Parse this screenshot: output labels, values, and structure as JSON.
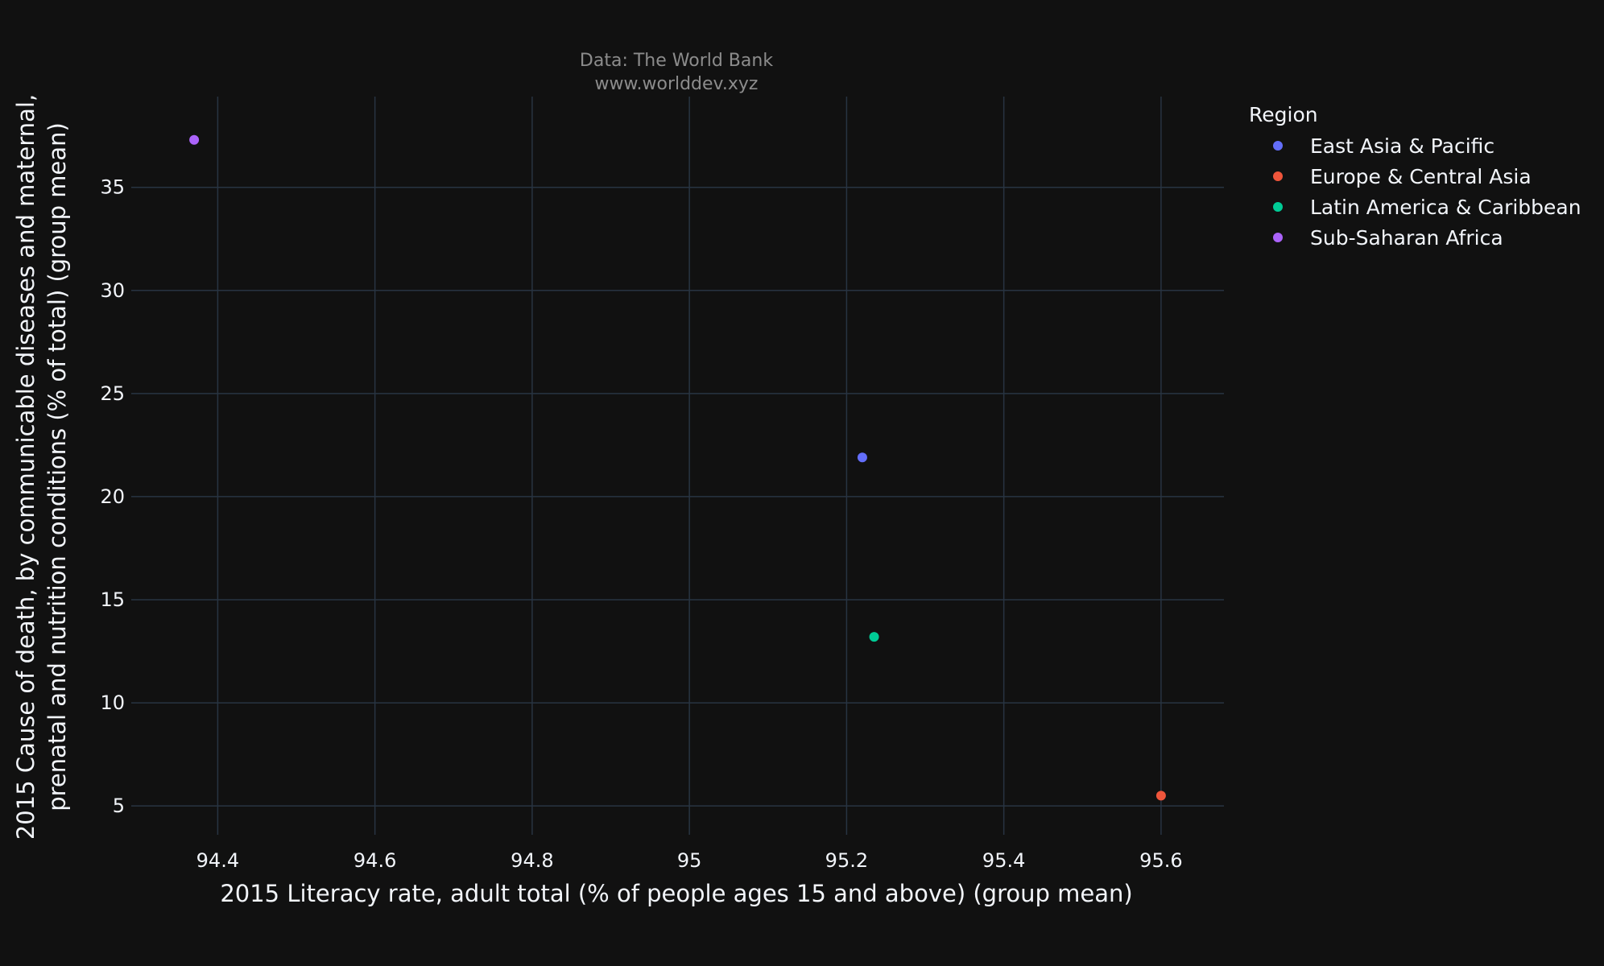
{
  "chart_data": {
    "type": "scatter",
    "subtitle_lines": [
      "Data: The World Bank",
      "www.worlddev.xyz"
    ],
    "xlabel": "2015 Literacy rate, adult total (% of people ages 15 and above) (group mean)",
    "ylabel_lines": [
      "2015 Cause of death, by communicable diseases and maternal,",
      "prenatal and nutrition conditions (% of total) (group mean)"
    ],
    "xlim": [
      94.29,
      95.68
    ],
    "ylim": [
      3.6,
      39.4
    ],
    "x_ticks": [
      94.4,
      94.6,
      94.8,
      95,
      95.2,
      95.4,
      95.6
    ],
    "x_tick_labels": [
      "94.4",
      "94.6",
      "94.8",
      "95",
      "95.2",
      "95.4",
      "95.6"
    ],
    "y_ticks": [
      5,
      10,
      15,
      20,
      25,
      30,
      35
    ],
    "y_tick_labels": [
      "5",
      "10",
      "15",
      "20",
      "25",
      "30",
      "35"
    ],
    "grid": true,
    "legend_title": "Region",
    "legend_position": "right",
    "series": [
      {
        "name": "East Asia & Pacific",
        "color": "#636efa",
        "x": [
          95.22
        ],
        "y": [
          21.9
        ]
      },
      {
        "name": "Europe & Central Asia",
        "color": "#ef553b",
        "x": [
          95.6
        ],
        "y": [
          5.5
        ]
      },
      {
        "name": "Latin America & Caribbean",
        "color": "#00cc96",
        "x": [
          95.235
        ],
        "y": [
          13.2
        ]
      },
      {
        "name": "Sub-Saharan Africa",
        "color": "#ab63fa",
        "x": [
          94.37
        ],
        "y": [
          37.3
        ]
      }
    ]
  }
}
